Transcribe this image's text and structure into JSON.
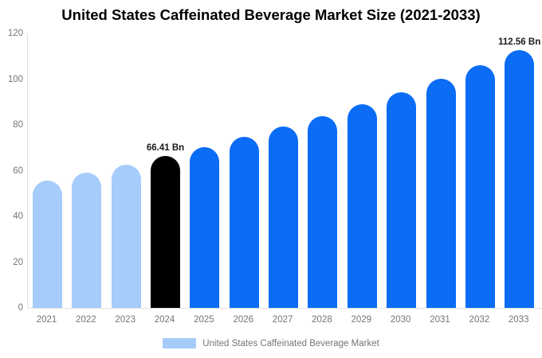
{
  "title": "United States Caffeinated Beverage Market Size (2021-2033)",
  "colors": {
    "light_blue": "#A5CCFA",
    "blue": "#0B6CF6",
    "black": "#000000",
    "axis_text": "#757575",
    "axis_line": "#E0E0E0",
    "value_label_text": "#1A1A1A",
    "title_text": "#000000"
  },
  "legend": {
    "label": "United States Caffeinated Beverage Market",
    "swatch_color": "#A5CCFA",
    "position": "bottom"
  },
  "chart_data": {
    "type": "bar",
    "title": "United States Caffeinated Beverage Market Size (2021-2033)",
    "xlabel": "",
    "ylabel": "",
    "ylim": [
      0,
      120
    ],
    "y_ticks": [
      0,
      20,
      40,
      60,
      80,
      100,
      120
    ],
    "grid": false,
    "legend_position": "bottom",
    "categories": [
      "2021",
      "2022",
      "2023",
      "2024",
      "2025",
      "2026",
      "2027",
      "2028",
      "2029",
      "2030",
      "2031",
      "2032",
      "2033"
    ],
    "values": [
      55.69,
      59.06,
      62.63,
      66.41,
      70.42,
      74.68,
      79.19,
      83.97,
      89.04,
      94.42,
      100.12,
      106.17,
      112.56
    ],
    "bar_colors": [
      "#A5CCFA",
      "#A5CCFA",
      "#A5CCFA",
      "#000000",
      "#0B6CF6",
      "#0B6CF6",
      "#0B6CF6",
      "#0B6CF6",
      "#0B6CF6",
      "#0B6CF6",
      "#0B6CF6",
      "#0B6CF6",
      "#0B6CF6"
    ],
    "data_labels": [
      null,
      null,
      null,
      "66.41 Bn",
      null,
      null,
      null,
      null,
      null,
      null,
      null,
      null,
      "112.56 Bn"
    ],
    "series": [
      {
        "name": "United States Caffeinated Beverage Market",
        "values": [
          55.69,
          59.06,
          62.63,
          66.41,
          70.42,
          74.68,
          79.19,
          83.97,
          89.04,
          94.42,
          100.12,
          106.17,
          112.56
        ]
      }
    ]
  }
}
